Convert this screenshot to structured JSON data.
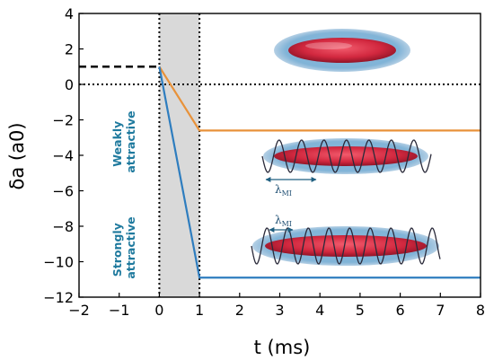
{
  "chart_data": {
    "type": "line",
    "xlabel": "t (ms)",
    "ylabel": "δa (a0)",
    "xlim": [
      -2,
      8
    ],
    "ylim": [
      -12,
      4
    ],
    "xticks": [
      -2,
      -1,
      0,
      1,
      2,
      3,
      4,
      5,
      6,
      7,
      8
    ],
    "yticks": [
      4,
      2,
      0,
      -2,
      -4,
      -6,
      -8,
      -10,
      -12
    ],
    "shaded_region": [
      0,
      1
    ],
    "vertical_markers": [
      0,
      1
    ],
    "series": [
      {
        "name": "",
        "color": "#000000",
        "style": "dashed",
        "x": [
          -2,
          0
        ],
        "y": [
          1,
          1
        ]
      },
      {
        "name": "",
        "color": "#e8923a",
        "style": "solid",
        "x": [
          0,
          1,
          8
        ],
        "y": [
          1,
          -2.6,
          -2.6
        ]
      },
      {
        "name": "",
        "color": "#2e7dbf",
        "style": "solid",
        "x": [
          0,
          1,
          8
        ],
        "y": [
          1,
          -10.9,
          -10.9
        ]
      }
    ],
    "reference_line": {
      "y": 0,
      "style": "dotted",
      "color": "#000000"
    },
    "annotations": [
      {
        "id": "weak",
        "lines": [
          "Weakly",
          "attractive"
        ],
        "color": "#1f7a9e"
      },
      {
        "id": "strong",
        "lines": [
          "Strongly",
          "attractive"
        ],
        "color": "#1f7a9e"
      },
      {
        "id": "lam1",
        "text": "λ",
        "sub": "MI"
      },
      {
        "id": "lam2",
        "text": "λ",
        "sub": "MI"
      }
    ],
    "grid": false
  }
}
